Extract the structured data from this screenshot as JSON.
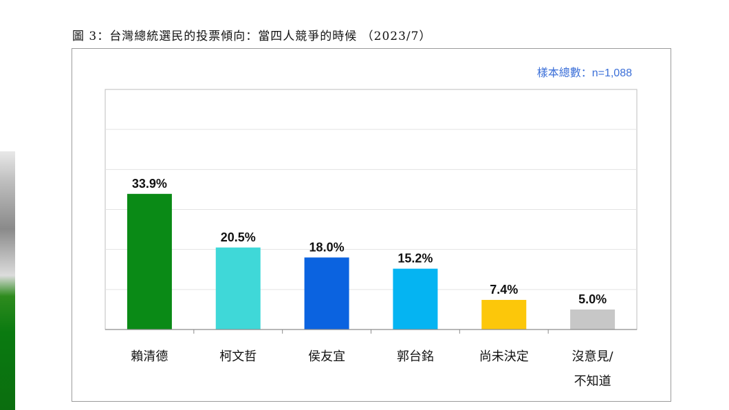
{
  "figure": {
    "title": "圖 3：台灣總統選民的投票傾向：當四人競爭的時候 （2023/7）",
    "sample_note": "樣本總數：n=1,088"
  },
  "colors": {
    "note_blue": "#3b6fd8",
    "gridline": "#e3e3e3",
    "axis": "#8c8c8c"
  },
  "chart_data": {
    "type": "bar",
    "title": "圖 3：台灣總統選民的投票傾向：當四人競爭的時候 （2023/7）",
    "xlabel": "",
    "ylabel": "",
    "ylim": [
      0,
      60
    ],
    "grid": true,
    "legend": "none",
    "categories": [
      [
        "賴清德"
      ],
      [
        "柯文哲"
      ],
      [
        "侯友宜"
      ],
      [
        "郭台銘"
      ],
      [
        "尚未決定"
      ],
      [
        "沒意見/",
        "不知道"
      ]
    ],
    "values": [
      33.9,
      20.5,
      18.0,
      15.2,
      7.4,
      5.0
    ],
    "data_labels": [
      "33.9%",
      "20.5%",
      "18.0%",
      "15.2%",
      "7.4%",
      "5.0%"
    ],
    "bar_colors": [
      "#0a8a16",
      "#3fd8d8",
      "#0b63e0",
      "#05b4f2",
      "#fcc70a",
      "#c7c7c7"
    ]
  }
}
